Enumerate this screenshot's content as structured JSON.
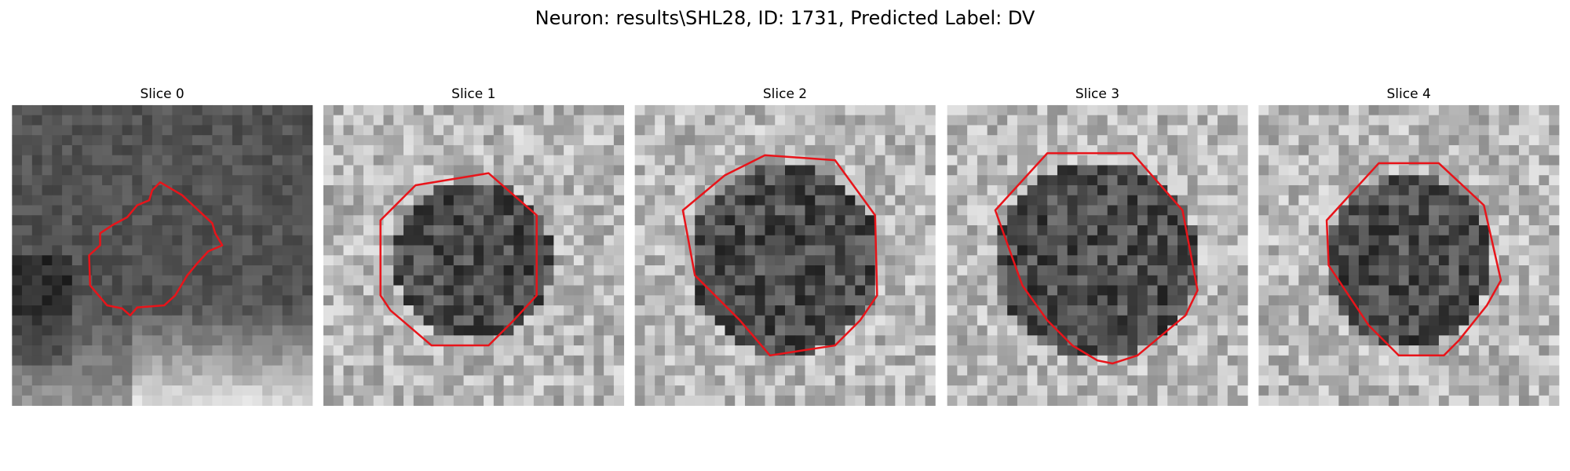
{
  "title": "Neuron: results\\SHL28, ID: 1731, Predicted Label: DV",
  "panels": [
    {
      "title": "Slice 0"
    },
    {
      "title": "Slice 1"
    },
    {
      "title": "Slice 2"
    },
    {
      "title": "Slice 3"
    },
    {
      "title": "Slice 4"
    }
  ]
}
